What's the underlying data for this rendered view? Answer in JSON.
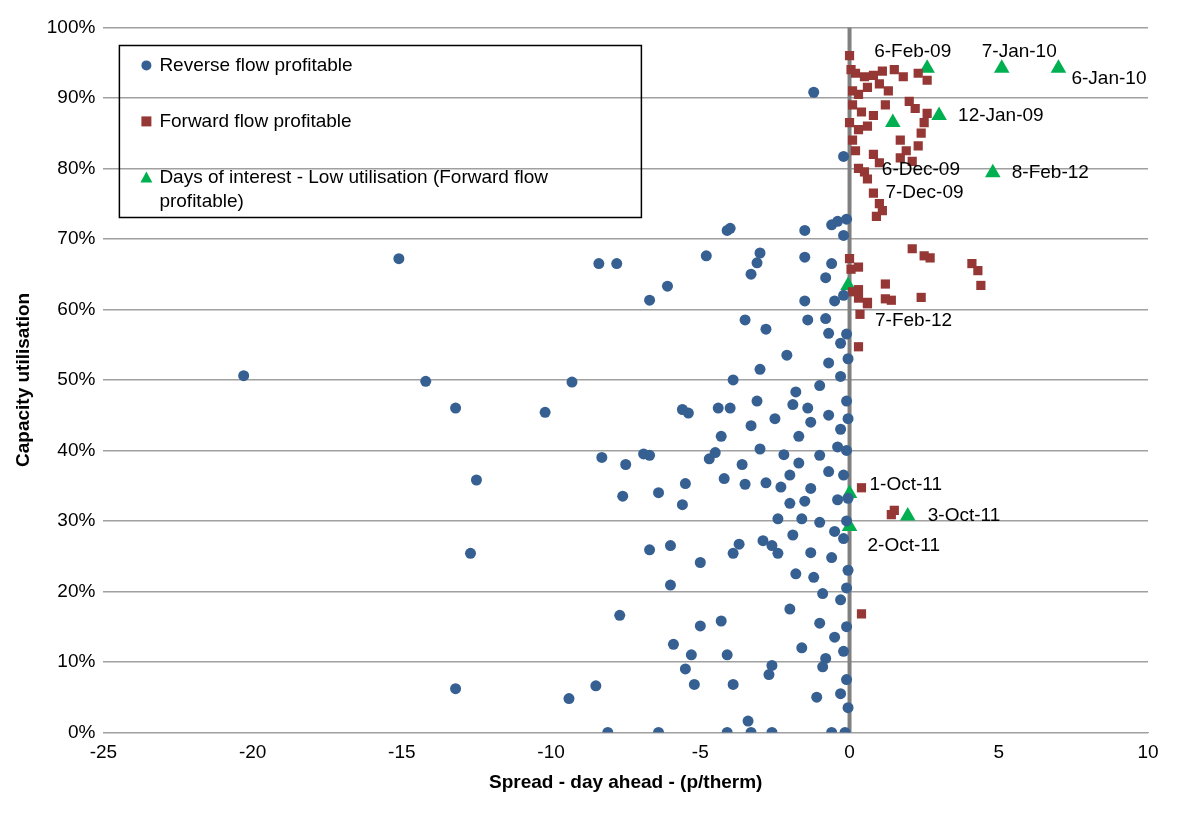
{
  "chart_data": {
    "type": "scatter",
    "xlabel": "Spread - day ahead - (p/therm)",
    "ylabel": "Capacity utilisation",
    "xlim": [
      -25,
      10
    ],
    "xticks": [
      -25,
      -20,
      -15,
      -10,
      -5,
      0,
      5,
      10
    ],
    "ylim": [
      0,
      100
    ],
    "yticks": [
      {
        "value": 0,
        "label": "0%"
      },
      {
        "value": 10,
        "label": "10%"
      },
      {
        "value": 20,
        "label": "20%"
      },
      {
        "value": 30,
        "label": "30%"
      },
      {
        "value": 40,
        "label": "40%"
      },
      {
        "value": 50,
        "label": "50%"
      },
      {
        "value": 60,
        "label": "60%"
      },
      {
        "value": 70,
        "label": "70%"
      },
      {
        "value": 80,
        "label": "80%"
      },
      {
        "value": 90,
        "label": "90%"
      },
      {
        "value": 100,
        "label": "100%"
      }
    ],
    "grid": "y",
    "legend": "top left",
    "ref_lines": [
      {
        "axis": "x",
        "value": 0,
        "color": "#808080"
      }
    ],
    "series": [
      {
        "name": "Reverse flow profitable",
        "color": "#376092",
        "marker": "circle",
        "x": [
          -20.3,
          -15.1,
          -14.2,
          -13.2,
          -12.5,
          -12.7,
          -13.2,
          -10.2,
          -9.3,
          -9.4,
          -8.5,
          -8.4,
          -7.8,
          -8.3,
          -8.1,
          -7.7,
          -7.6,
          -7.5,
          -6.9,
          -6.7,
          -6.7,
          -6.7,
          -6.4,
          -6.4,
          -6.1,
          -6.0,
          -6.0,
          -5.9,
          -5.6,
          -5.4,
          -5.5,
          -5.6,
          -5.5,
          -5.3,
          -5.2,
          -5.0,
          -5.0,
          -4.8,
          -4.7,
          -4.5,
          -4.4,
          -4.3,
          -4.2,
          -4.3,
          -4.1,
          -4.0,
          -4.0,
          -3.9,
          -4.1,
          -3.9,
          -4.1,
          -3.9,
          -3.6,
          -3.5,
          -3.5,
          -3.3,
          -3.1,
          -3.0,
          -3.3,
          -3.4,
          -3.3,
          -3.0,
          -2.8,
          -3.1,
          -3.0,
          -2.9,
          -2.8,
          -2.6,
          -2.6,
          -2.7,
          -2.5,
          -2.4,
          -2.4,
          -2.6,
          -2.3,
          -2.1,
          -2.0,
          -2.0,
          -1.9,
          -1.9,
          -1.8,
          -1.8,
          -1.7,
          -1.6,
          -1.7,
          -1.5,
          -1.5,
          -1.5,
          -1.4,
          -1.4,
          -1.3,
          -1.3,
          -1.2,
          -1.2,
          -1.1,
          -1.0,
          -1.0,
          -1.0,
          -1.0,
          -0.9,
          -0.9,
          -0.8,
          -0.8,
          -0.7,
          -0.7,
          -0.7,
          -0.7,
          -0.6,
          -0.6,
          -0.6,
          -0.6,
          -0.5,
          -0.5,
          -0.5,
          -0.4,
          -0.4,
          -0.4,
          -0.3,
          -0.3,
          -0.3,
          -0.3,
          -0.3,
          -0.2,
          -0.2,
          -0.2,
          -0.2,
          -0.2,
          -0.2,
          -0.15,
          -0.1,
          -0.1,
          -0.1,
          -0.1,
          -0.1,
          -0.1,
          -0.1,
          -0.1,
          -0.05,
          -0.05,
          -0.05,
          -0.05,
          -0.05,
          -1.6,
          -1.3,
          -2.2,
          -3.7,
          -2.0,
          -1.5,
          -0.8
        ],
        "values": [
          50.6,
          67.2,
          49.8,
          46,
          35.8,
          25.4,
          6.2,
          45.4,
          49.7,
          4.8,
          6.6,
          66.5,
          66.5,
          39,
          0,
          16.6,
          33.5,
          38,
          39.5,
          39.3,
          25.9,
          61.3,
          34,
          0,
          63.3,
          26.5,
          20.9,
          12.5,
          45.8,
          45.3,
          35.3,
          32.3,
          9,
          11,
          6.8,
          15.1,
          24.1,
          67.6,
          38.8,
          39.7,
          46,
          42,
          36,
          15.8,
          71.2,
          71.5,
          46,
          50,
          11,
          6.8,
          0,
          25.4,
          38,
          35.2,
          58.5,
          65,
          66.6,
          68,
          43.5,
          1.6,
          0,
          51.5,
          57.2,
          47,
          40.2,
          27.2,
          35.4,
          26.5,
          9.5,
          8.2,
          44.5,
          30.3,
          25.4,
          0,
          34.8,
          53.5,
          36.5,
          32.5,
          46.5,
          28,
          22.5,
          48.3,
          42,
          12,
          38.2,
          71.2,
          67.4,
          61.2,
          58.5,
          46,
          44,
          34.6,
          22,
          90.8,
          5,
          15.5,
          49.2,
          39.3,
          29.8,
          19.7,
          9.3,
          64.5,
          58.7,
          56.6,
          52.4,
          45,
          37,
          72,
          66.5,
          24.8,
          0,
          61.2,
          28.5,
          13.5,
          72.5,
          40.5,
          33,
          55.2,
          50.5,
          43,
          18.8,
          5.5,
          81.7,
          70.5,
          62,
          36.5,
          27.5,
          11.5,
          0,
          72.8,
          56.5,
          47,
          40,
          30,
          20.5,
          15,
          7.5,
          53,
          44.5,
          33.2,
          23,
          3.5,
          30.3,
          25.5,
          39.4,
          26.7,
          17.5,
          32.8,
          10.5
        ]
      },
      {
        "name": "Forward flow profitable",
        "color": "#953735",
        "marker": "square",
        "x": [
          0,
          0.05,
          0.2,
          0.5,
          0.8,
          1.1,
          1.5,
          1.8,
          2.3,
          2.6,
          0.1,
          0.3,
          0.6,
          1.0,
          1.3,
          0.1,
          0.4,
          0.8,
          1.2,
          0,
          0.3,
          0.6,
          0.1,
          0.2,
          2.0,
          2.2,
          2.6,
          2.5,
          2.4,
          2.3,
          1.7,
          1.9,
          1.7,
          2.1,
          0.8,
          1.0,
          0.3,
          0.5,
          0.6,
          0.8,
          1.0,
          1.1,
          0.9,
          0,
          0.05,
          0.3,
          0.1,
          0.3,
          0.6,
          1.2,
          1.4,
          1.2,
          2.1,
          2.5,
          2.7,
          4.1,
          4.3,
          4.4,
          2.4,
          0.35,
          0.3,
          0.4,
          1.5,
          1.4,
          0.4,
          0.3,
          0.6
        ],
        "values": [
          96,
          94,
          93.5,
          93,
          93.2,
          93.8,
          94,
          93,
          93.5,
          92.5,
          91,
          90.5,
          91.5,
          92,
          91,
          89,
          88,
          87.5,
          89,
          86.5,
          85.5,
          86,
          84,
          82.5,
          89.5,
          88.5,
          87.8,
          86.5,
          85,
          83.2,
          84,
          82.5,
          81.5,
          81,
          82,
          80.8,
          80,
          79.5,
          78.5,
          76.5,
          75,
          74,
          73.2,
          67.2,
          65.7,
          66,
          62.5,
          61.6,
          61,
          63.6,
          61.3,
          61.5,
          68.6,
          67.6,
          67.3,
          66.5,
          65.5,
          63.4,
          61.7,
          59.3,
          54.7,
          34.7,
          31.5,
          30.9,
          16.8,
          62.8,
          60.8
        ]
      },
      {
        "name": "Days of interest - Low utilisation (Forward flow profitable)",
        "color": "#00b050",
        "marker": "triangle",
        "x": [
          2.6,
          5.1,
          7.0,
          3.0,
          1.45,
          4.8,
          -0.05,
          0,
          1.95,
          0
        ],
        "values": [
          94.2,
          94.2,
          94.2,
          87.5,
          86.5,
          79.4,
          63.4,
          33.9,
          30.7,
          29.2
        ]
      }
    ],
    "annotations": [
      {
        "text": "6-Feb-09",
        "x": 2.6,
        "y": 94.2
      },
      {
        "text": "7-Jan-10",
        "x": 5.1,
        "y": 94.2
      },
      {
        "text": "6-Jan-10",
        "x": 7.0,
        "y": 94.2
      },
      {
        "text": "12-Jan-09",
        "x": 3.0,
        "y": 87.5
      },
      {
        "text": "6-Dec-09",
        "x": 1.45,
        "y": 86.5
      },
      {
        "text": "8-Feb-12",
        "x": 4.8,
        "y": 79.4
      },
      {
        "text": "7-Dec-09",
        "x": 0.8,
        "y": 76.5
      },
      {
        "text": "7-Feb-12",
        "x": -0.05,
        "y": 63.4
      },
      {
        "text": "1-Oct-11",
        "x": 0,
        "y": 33.9
      },
      {
        "text": "3-Oct-11",
        "x": 1.95,
        "y": 30.7
      },
      {
        "text": "2-Oct-11",
        "x": 0,
        "y": 29.2
      }
    ]
  }
}
